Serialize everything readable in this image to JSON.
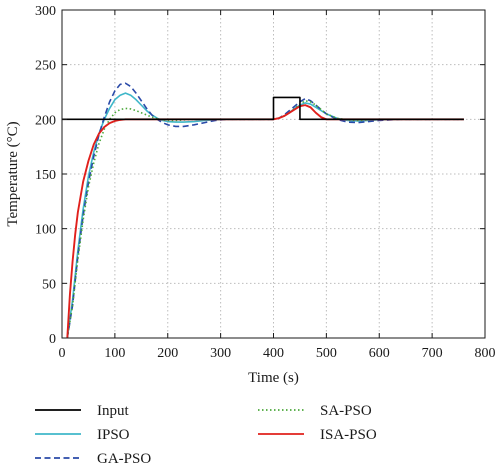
{
  "chart_data": {
    "type": "line",
    "xlabel": "Time (s)",
    "ylabel": "Temperature (°C)",
    "xlim": [
      0,
      800
    ],
    "ylim": [
      0,
      300
    ],
    "xticks": [
      0,
      100,
      200,
      300,
      400,
      500,
      600,
      700,
      800
    ],
    "yticks": [
      0,
      50,
      100,
      150,
      200,
      250,
      300
    ],
    "grid": "dotted",
    "legend_position": "bottom",
    "series": [
      {
        "name": "Input",
        "color": "#000000",
        "style": "solid",
        "x": [
          0,
          400,
          400,
          450,
          450,
          760
        ],
        "y": [
          200,
          200,
          220,
          220,
          200,
          200
        ]
      },
      {
        "name": "IPSO",
        "color": "#3fb7c9",
        "style": "solid",
        "x": [
          10,
          20,
          30,
          40,
          50,
          60,
          70,
          80,
          90,
          100,
          110,
          120,
          130,
          140,
          150,
          160,
          170,
          180,
          190,
          200,
          215,
          230,
          250,
          270,
          290,
          310,
          340,
          380,
          400,
          410,
          420,
          430,
          440,
          450,
          460,
          470,
          480,
          490,
          500,
          520,
          540,
          560,
          580,
          600,
          640,
          700,
          760
        ],
        "y": [
          0,
          35,
          80,
          118,
          148,
          170,
          187,
          200,
          210,
          218,
          222,
          224,
          222,
          218,
          213,
          208,
          204,
          201,
          199,
          198,
          197.5,
          197.5,
          198,
          199,
          199.5,
          200,
          200,
          200,
          200,
          201,
          203,
          206,
          210,
          213,
          215,
          214,
          211,
          208,
          205,
          201,
          199,
          198.5,
          199,
          199.5,
          200,
          200,
          200
        ]
      },
      {
        "name": "GA-PSO",
        "color": "#2a4aa8",
        "style": "dashed",
        "x": [
          10,
          20,
          30,
          40,
          50,
          60,
          70,
          80,
          90,
          100,
          110,
          120,
          130,
          140,
          150,
          160,
          170,
          180,
          190,
          200,
          215,
          230,
          250,
          270,
          290,
          310,
          340,
          380,
          400,
          410,
          420,
          430,
          440,
          450,
          460,
          470,
          480,
          490,
          500,
          520,
          540,
          560,
          580,
          600,
          640,
          700,
          760
        ],
        "y": [
          0,
          30,
          75,
          112,
          142,
          166,
          186,
          202,
          216,
          226,
          232,
          233,
          230,
          224,
          217,
          210,
          204,
          200,
          197,
          195,
          193.5,
          193.5,
          195,
          197,
          199,
          200,
          200,
          200,
          200,
          201,
          204,
          208,
          212,
          216,
          219,
          217,
          213,
          209,
          205,
          200,
          197.5,
          197,
          198,
          199,
          200,
          200,
          200
        ]
      },
      {
        "name": "SA-PSO",
        "color": "#4aa83a",
        "style": "dotted",
        "x": [
          10,
          20,
          30,
          40,
          50,
          60,
          70,
          80,
          90,
          100,
          110,
          120,
          130,
          140,
          150,
          160,
          170,
          180,
          190,
          200,
          215,
          230,
          250,
          270,
          290,
          310,
          340,
          380,
          400,
          410,
          420,
          430,
          440,
          450,
          460,
          470,
          480,
          490,
          500,
          520,
          540,
          560,
          580,
          600,
          640,
          700,
          760
        ],
        "y": [
          0,
          30,
          72,
          108,
          138,
          160,
          178,
          191,
          200,
          206,
          209,
          210,
          209.5,
          208,
          206,
          204,
          202,
          200.5,
          199.5,
          199,
          199,
          199.5,
          200,
          200,
          200,
          200,
          200,
          200,
          200,
          201,
          203,
          206,
          210,
          214,
          217,
          216,
          213,
          209,
          205,
          201,
          199.5,
          199,
          199.5,
          200,
          200,
          200,
          200
        ]
      },
      {
        "name": "ISA-PSO",
        "color": "#e0201c",
        "style": "solid",
        "x": [
          10,
          15,
          20,
          25,
          30,
          40,
          50,
          60,
          70,
          80,
          90,
          100,
          110,
          120,
          140,
          160,
          200,
          300,
          400,
          410,
          420,
          430,
          440,
          450,
          460,
          470,
          480,
          490,
          500,
          520,
          560,
          600,
          640,
          700,
          760
        ],
        "y": [
          0,
          40,
          70,
          95,
          115,
          143,
          162,
          177,
          187,
          193,
          196.5,
          198.5,
          199.5,
          200,
          200,
          200,
          200,
          200,
          200,
          201,
          203,
          206,
          209,
          212,
          213,
          211,
          206,
          202,
          200,
          200,
          200,
          200,
          200,
          200,
          200
        ]
      }
    ]
  }
}
